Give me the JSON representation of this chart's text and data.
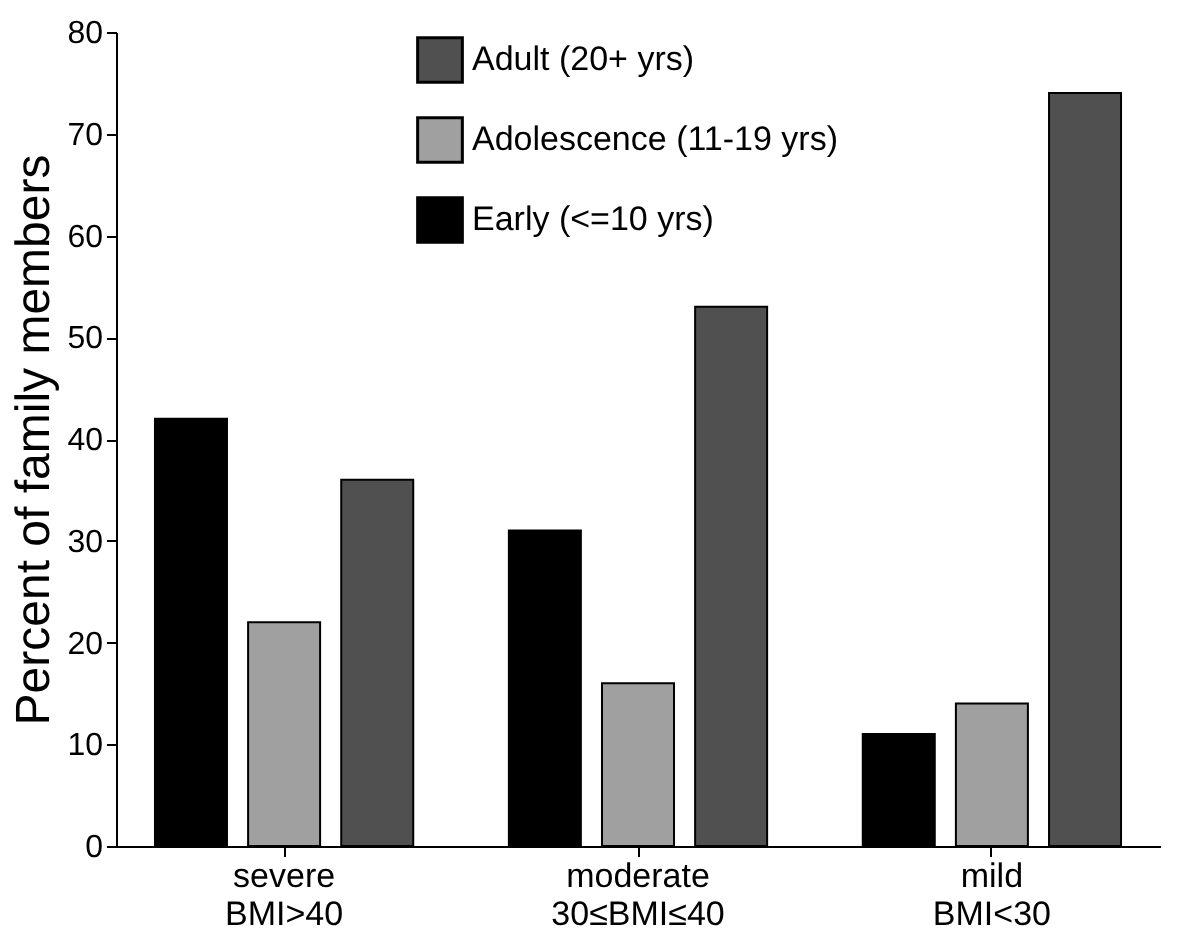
{
  "chart_data": {
    "type": "bar",
    "ylabel": "Percent of family members",
    "categories": [
      "severe\nBMI>40",
      "moderate\n30≤BMI≤40",
      "mild\nBMI<30"
    ],
    "series": [
      {
        "name": "Early (<=10 yrs)",
        "color": "#000000",
        "values": [
          42,
          31,
          11
        ]
      },
      {
        "name": "Adolescence (11-19 yrs)",
        "color": "#a0a0a0",
        "values": [
          22,
          16,
          14
        ]
      },
      {
        "name": "Adult (20+ yrs)",
        "color": "#505050",
        "values": [
          36,
          53,
          74
        ]
      }
    ],
    "ylim": [
      0,
      80
    ],
    "yticks": [
      0,
      10,
      20,
      30,
      40,
      50,
      60,
      70,
      80
    ],
    "grid": false,
    "legend": "top"
  }
}
